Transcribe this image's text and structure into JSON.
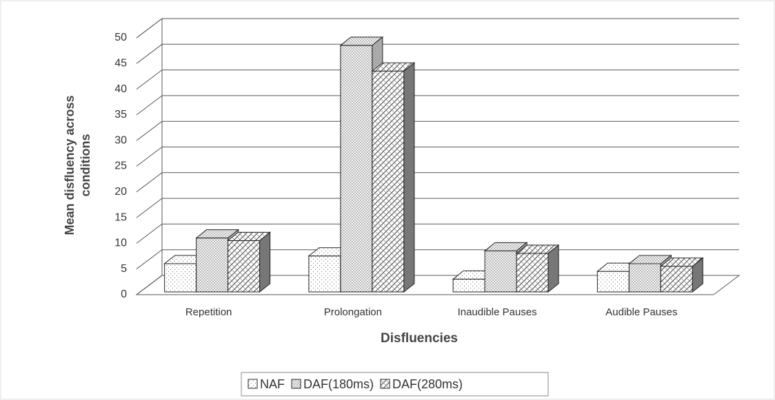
{
  "chart_data": {
    "type": "bar3d",
    "categories": [
      "Repetition",
      "Prolongation",
      "Inaudible Pauses",
      "Audible Pauses"
    ],
    "series": [
      {
        "name": "NAF",
        "color": "#ffffff",
        "values": [
          5.5,
          7,
          2.5,
          4
        ]
      },
      {
        "name": "DAF(180ms)",
        "color": "#eeeeee",
        "values": [
          10.5,
          48,
          8,
          5.5
        ]
      },
      {
        "name": "DAF(280ms)",
        "color": "#dddddd",
        "values": [
          10,
          43,
          7.5,
          5
        ]
      }
    ],
    "x_label": "Disfluencies",
    "y_label": [
      "Mean disfluency across",
      "conditions"
    ],
    "ylim": [
      0,
      50
    ],
    "yticks": [
      0,
      5,
      10,
      15,
      20,
      25,
      30,
      35,
      40,
      45,
      50
    ],
    "grid": true,
    "legend": "bottom"
  }
}
